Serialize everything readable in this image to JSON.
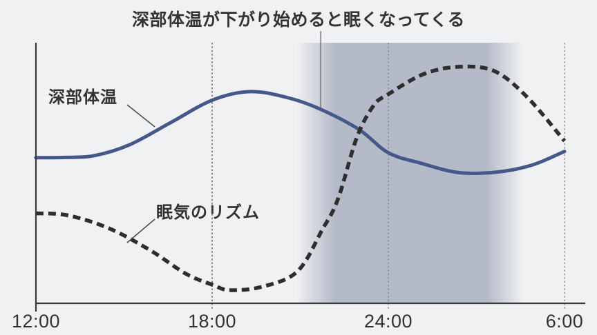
{
  "background_color": "#f0f1f2",
  "text_color": "#333333",
  "axis_color": "#3a3a3a",
  "annotation_line_color": "#6a6a6a",
  "leader_line_color": "#4a4a4a",
  "chart_data": {
    "type": "line",
    "title": "深部体温が下がり始めると眠くなってくる",
    "xlabel": "",
    "ylabel": "",
    "x_axis": {
      "unit": "time-of-day",
      "range_hours": [
        12,
        30
      ],
      "ticks": [
        {
          "hour": 12,
          "label": "12:00",
          "gridline_color": null
        },
        {
          "hour": 18,
          "label": "18:00",
          "gridline_color": "#4a4a4a"
        },
        {
          "hour": 24,
          "label": "24:00",
          "gridline_color": "#7e838d"
        },
        {
          "hour": 30,
          "label": "6:00",
          "gridline_color": "#7e838d"
        }
      ]
    },
    "y_axis": {
      "label": "",
      "range": [
        0,
        100
      ],
      "note": "unlabeled relative level (axis has no tick marks)"
    },
    "series": [
      {
        "name": "深部体温",
        "style": "solid",
        "color": "#45588a",
        "stroke_width": 5,
        "x_hours": [
          12,
          13,
          14,
          15.2,
          16.6,
          18,
          19.3,
          20.6,
          21.7,
          23,
          24,
          25.1,
          26.4,
          27.7,
          28.9,
          30
        ],
        "values": [
          56,
          56.1,
          56.8,
          61,
          69.5,
          78,
          81.3,
          78.9,
          74.5,
          66.8,
          57.9,
          53.9,
          50.3,
          50.5,
          53.2,
          58.4
        ]
      },
      {
        "name": "眠気のリズム",
        "style": "dashed",
        "color": "#2e2e2e",
        "stroke_width": 5.5,
        "dash_pattern": "11 7",
        "x_hours": [
          12,
          13.1,
          14.5,
          15.9,
          17.1,
          18,
          18.6,
          19.7,
          20.9,
          21.74,
          22.28,
          22.92,
          23.5,
          24,
          25.2,
          26.4,
          27.6,
          28.7,
          30
        ],
        "values": [
          34.7,
          33.9,
          28.9,
          20.5,
          11.6,
          7.4,
          5.3,
          6.6,
          12.4,
          28.2,
          40,
          63.5,
          76,
          80.3,
          88,
          90.8,
          89.2,
          79.5,
          62.4
        ]
      }
    ],
    "highlight_band": {
      "meaning": "night / sleepy period shading",
      "color": "#b4bac7",
      "start_hour": 20.85,
      "full_start_hour": 22.2,
      "full_end_hour": 27.36,
      "end_hour": 28.59
    },
    "annotation": {
      "text": "深部体温が下がり始めると眠くなってくる",
      "pointer_x_hour": 21.7
    },
    "grid": "vertical dashed gridlines at 18:00, 24:00, 6:00",
    "legend_position": "floating labels on plot"
  }
}
